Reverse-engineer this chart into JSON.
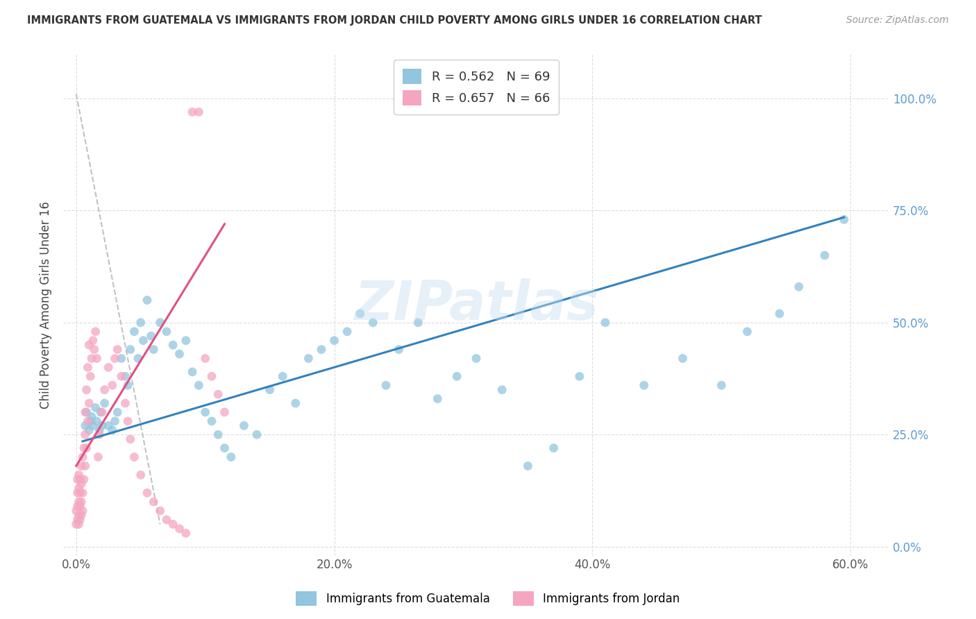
{
  "title": "IMMIGRANTS FROM GUATEMALA VS IMMIGRANTS FROM JORDAN CHILD POVERTY AMONG GIRLS UNDER 16 CORRELATION CHART",
  "source": "Source: ZipAtlas.com",
  "ylabel": "Child Poverty Among Girls Under 16",
  "r_guatemala": 0.562,
  "n_guatemala": 69,
  "r_jordan": 0.657,
  "n_jordan": 66,
  "color_guatemala": "#92c5de",
  "color_jordan": "#f4a6c0",
  "color_trendline_guatemala": "#3182bd",
  "color_trendline_jordan": "#e05080",
  "watermark": "ZIPatlas",
  "legend_label_guatemala": "Immigrants from Guatemala",
  "legend_label_jordan": "Immigrants from Jordan",
  "ytick_labels": [
    "0.0%",
    "25.0%",
    "50.0%",
    "75.0%",
    "100.0%"
  ],
  "ytick_vals": [
    0.0,
    0.25,
    0.5,
    0.75,
    1.0
  ],
  "xtick_labels": [
    "0.0%",
    "20.0%",
    "40.0%",
    "60.0%"
  ],
  "xtick_vals": [
    0.0,
    0.2,
    0.4,
    0.6
  ],
  "xlim": [
    -0.01,
    0.63
  ],
  "ylim": [
    -0.02,
    1.1
  ],
  "guat_trend_x": [
    0.005,
    0.595
  ],
  "guat_trend_y": [
    0.235,
    0.735
  ],
  "jord_trend_x": [
    0.0,
    0.115
  ],
  "jord_trend_y": [
    0.18,
    0.72
  ],
  "gray_line_x": [
    0.0,
    0.065
  ],
  "gray_line_y": [
    1.01,
    0.05
  ],
  "guatemala_x": [
    0.007,
    0.008,
    0.01,
    0.011,
    0.012,
    0.013,
    0.015,
    0.016,
    0.018,
    0.019,
    0.02,
    0.022,
    0.025,
    0.028,
    0.03,
    0.032,
    0.035,
    0.038,
    0.04,
    0.042,
    0.045,
    0.048,
    0.05,
    0.052,
    0.055,
    0.058,
    0.06,
    0.065,
    0.07,
    0.075,
    0.08,
    0.085,
    0.09,
    0.095,
    0.1,
    0.105,
    0.11,
    0.115,
    0.12,
    0.13,
    0.14,
    0.15,
    0.16,
    0.17,
    0.18,
    0.19,
    0.2,
    0.21,
    0.22,
    0.23,
    0.24,
    0.25,
    0.265,
    0.28,
    0.295,
    0.31,
    0.33,
    0.35,
    0.37,
    0.39,
    0.41,
    0.44,
    0.47,
    0.5,
    0.52,
    0.545,
    0.56,
    0.58,
    0.595
  ],
  "guatemala_y": [
    0.27,
    0.3,
    0.26,
    0.28,
    0.29,
    0.27,
    0.31,
    0.28,
    0.26,
    0.3,
    0.27,
    0.32,
    0.27,
    0.26,
    0.28,
    0.3,
    0.42,
    0.38,
    0.36,
    0.44,
    0.48,
    0.42,
    0.5,
    0.46,
    0.55,
    0.47,
    0.44,
    0.5,
    0.48,
    0.45,
    0.43,
    0.46,
    0.39,
    0.36,
    0.3,
    0.28,
    0.25,
    0.22,
    0.2,
    0.27,
    0.25,
    0.35,
    0.38,
    0.32,
    0.42,
    0.44,
    0.46,
    0.48,
    0.52,
    0.5,
    0.36,
    0.44,
    0.5,
    0.33,
    0.38,
    0.42,
    0.35,
    0.18,
    0.22,
    0.38,
    0.5,
    0.36,
    0.42,
    0.36,
    0.48,
    0.52,
    0.58,
    0.65,
    0.73
  ],
  "jordan_x": [
    0.0,
    0.0,
    0.001,
    0.001,
    0.001,
    0.001,
    0.002,
    0.002,
    0.002,
    0.002,
    0.002,
    0.003,
    0.003,
    0.003,
    0.003,
    0.004,
    0.004,
    0.004,
    0.004,
    0.005,
    0.005,
    0.005,
    0.006,
    0.006,
    0.007,
    0.007,
    0.007,
    0.008,
    0.008,
    0.009,
    0.009,
    0.01,
    0.01,
    0.011,
    0.012,
    0.013,
    0.014,
    0.015,
    0.016,
    0.017,
    0.018,
    0.02,
    0.022,
    0.025,
    0.028,
    0.03,
    0.032,
    0.035,
    0.038,
    0.04,
    0.042,
    0.045,
    0.05,
    0.055,
    0.06,
    0.065,
    0.07,
    0.075,
    0.08,
    0.085,
    0.09,
    0.095,
    0.1,
    0.105,
    0.11,
    0.115
  ],
  "jordan_y": [
    0.05,
    0.08,
    0.06,
    0.09,
    0.12,
    0.15,
    0.05,
    0.07,
    0.1,
    0.13,
    0.16,
    0.06,
    0.09,
    0.12,
    0.15,
    0.07,
    0.1,
    0.14,
    0.18,
    0.08,
    0.12,
    0.2,
    0.15,
    0.22,
    0.18,
    0.25,
    0.3,
    0.22,
    0.35,
    0.28,
    0.4,
    0.32,
    0.45,
    0.38,
    0.42,
    0.46,
    0.44,
    0.48,
    0.42,
    0.2,
    0.25,
    0.3,
    0.35,
    0.4,
    0.36,
    0.42,
    0.44,
    0.38,
    0.32,
    0.28,
    0.24,
    0.2,
    0.16,
    0.12,
    0.1,
    0.08,
    0.06,
    0.05,
    0.04,
    0.03,
    0.97,
    0.97,
    0.42,
    0.38,
    0.34,
    0.3
  ]
}
